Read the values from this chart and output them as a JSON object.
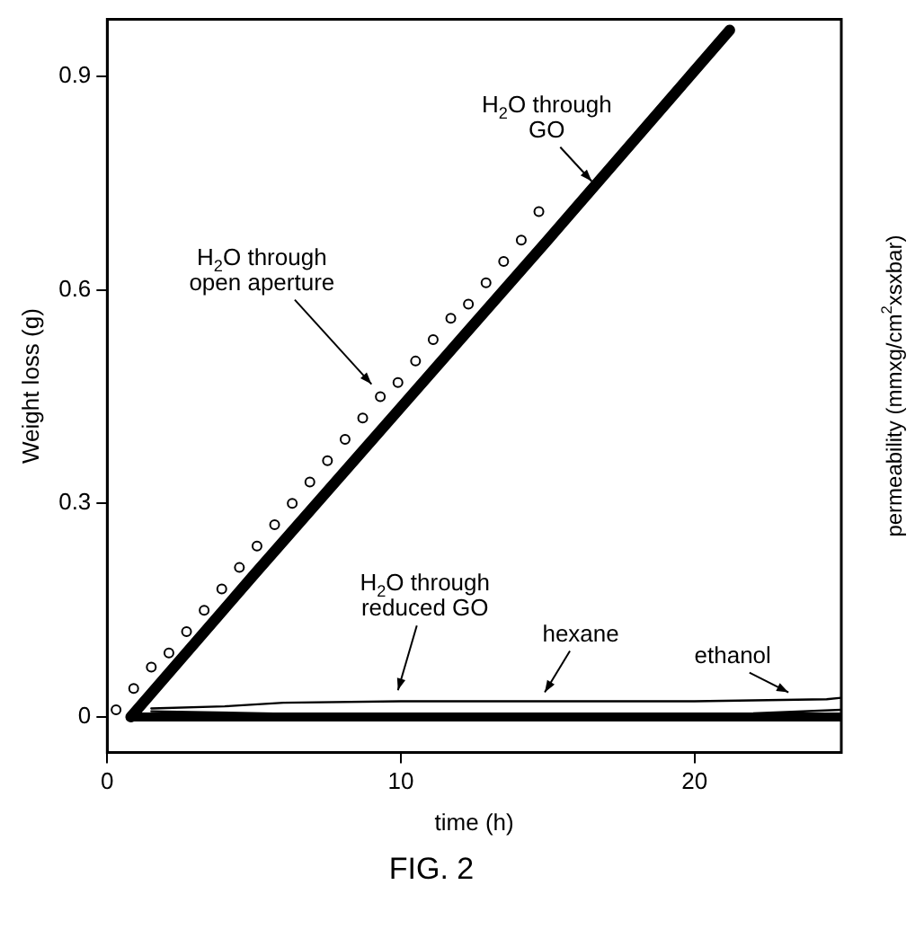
{
  "chart_data": {
    "type": "line",
    "xlabel": "time (h)",
    "ylabel": "Weight loss (g)",
    "y2label": "permeability (mmxg/cm$^{2}$xsxbar)",
    "xlim": [
      0,
      25
    ],
    "xticks": [
      0,
      10,
      20
    ],
    "ylim": [
      -0.05,
      0.98
    ],
    "yticks": [
      0,
      0.3,
      0.6,
      0.9
    ],
    "grid": false,
    "legend": false,
    "series": [
      {
        "type": "scatter",
        "marker": "circle",
        "color": "#000000",
        "x": [
          0.3,
          0.9,
          1.5,
          2.1,
          2.7,
          3.3,
          3.9,
          4.5,
          5.1,
          5.7,
          6.3,
          6.9,
          7.5,
          8.1,
          8.7,
          9.3,
          9.9,
          10.5,
          11.1,
          11.7,
          12.3,
          12.9,
          13.5,
          14.1,
          14.7
        ],
        "values": [
          0.01,
          0.04,
          0.07,
          0.09,
          0.12,
          0.15,
          0.18,
          0.21,
          0.24,
          0.27,
          0.3,
          0.33,
          0.36,
          0.39,
          0.42,
          0.45,
          0.47,
          0.5,
          0.53,
          0.56,
          0.58,
          0.61,
          0.64,
          0.67,
          0.71
        ]
      },
      {
        "marker": "none",
        "color": "#000000",
        "x": [
          0.8,
          5,
          10,
          15,
          21.2
        ],
        "values": [
          0,
          0.2,
          0.435,
          0.67,
          0.965
        ]
      },
      {
        "marker": "none",
        "color": "#000000",
        "x": [
          1.5,
          4,
          6,
          10,
          15,
          20,
          24.5,
          25
        ],
        "values": [
          0.012,
          0.015,
          0.02,
          0.022,
          0.022,
          0.022,
          0.025,
          0.027
        ]
      },
      {
        "marker": "none",
        "color": "#000000",
        "x": [
          1.5,
          8,
          22,
          25
        ],
        "values": [
          0.008,
          0.003,
          0.005,
          0.01
        ]
      },
      {
        "marker": "none",
        "color": "#000000",
        "x": [
          0.8,
          25
        ],
        "values": [
          0,
          0
        ]
      }
    ],
    "annotations": [
      {
        "text": "H$_{2}$O through\nGO",
        "x": 16.5,
        "y": 0.745
      },
      {
        "text": "H$_{2}$O through\nopen aperture",
        "x": 9,
        "y": 0.46
      },
      {
        "text": "H$_{2}$O through\nreduced GO",
        "x": 9.9,
        "y": 0.03
      },
      {
        "text": "hexane",
        "x": 14.9,
        "y": 0.027
      },
      {
        "text": "ethanol",
        "x": 23.2,
        "y": 0.027
      },
      "FIG. 2"
    ]
  }
}
